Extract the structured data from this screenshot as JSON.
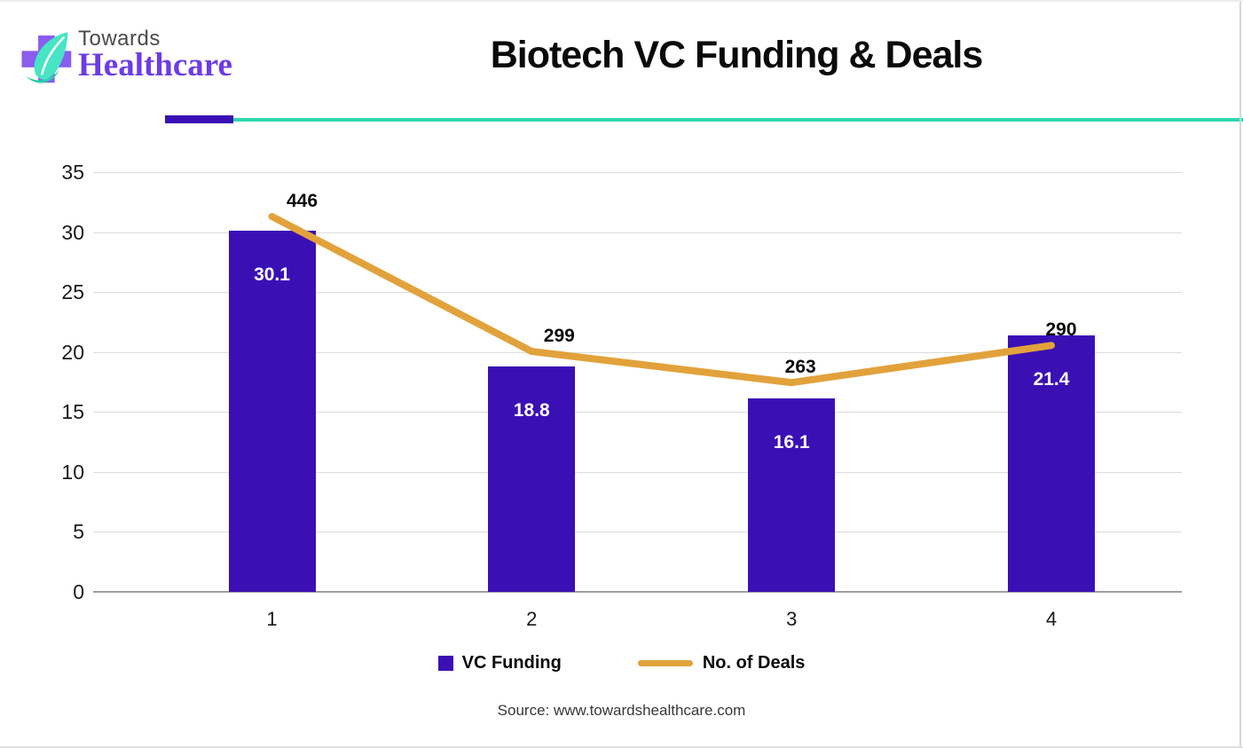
{
  "header": {
    "logo": {
      "towards": "Towards",
      "healthcare": "Healthcare"
    },
    "title": "Biotech VC Funding & Deals"
  },
  "icons": {
    "logo": "cross-leaf-icon",
    "legend_bar_swatch": "square-swatch-icon",
    "legend_line_swatch": "line-swatch-icon"
  },
  "colors": {
    "bar_purple": "#3A10B5",
    "line_orange": "#E2A23B",
    "accent_teal": "#2ED9AC",
    "accent_purple": "#3A10B5",
    "gridline": "#DCDCDC",
    "axis_line": "#9E9E9E",
    "logo_cross_purple": "#8A5CF0",
    "logo_leaf_teal": "#47E5C3",
    "logo_swoosh_teal": "#25CFA9",
    "logo_healthcare_purple": "#6D3BE8"
  },
  "chart_data": {
    "type": "bar",
    "title": "Biotech VC Funding & Deals",
    "categories": [
      "1",
      "2",
      "3",
      "4"
    ],
    "series": [
      {
        "name": "VC Funding",
        "type": "bar",
        "values": [
          30.1,
          18.8,
          16.1,
          21.4
        ],
        "color": "#3A10B5",
        "value_labels": [
          "30.1",
          "18.8",
          "16.1",
          "21.4"
        ]
      },
      {
        "name": "No. of Deals",
        "type": "line",
        "values": [
          446,
          299,
          263,
          290
        ],
        "color": "#E2A23B",
        "value_labels": [
          "446",
          "299",
          "263",
          "290"
        ],
        "axis_units": [
          31.3,
          20.05,
          17.45,
          20.55
        ]
      }
    ],
    "xlabel": "",
    "ylabel": "",
    "ylim": [
      0,
      35
    ],
    "yticks": [
      0,
      5,
      10,
      15,
      20,
      25,
      30,
      35
    ],
    "grid": true,
    "legend_position": "bottom"
  },
  "legend": {
    "items": [
      {
        "label": "VC Funding",
        "swatch": "square",
        "color": "#3A10B5"
      },
      {
        "label": "No. of Deals",
        "swatch": "line",
        "color": "#E2A23B"
      }
    ]
  },
  "footer": {
    "source": "Source: www.towardshealthcare.com"
  }
}
